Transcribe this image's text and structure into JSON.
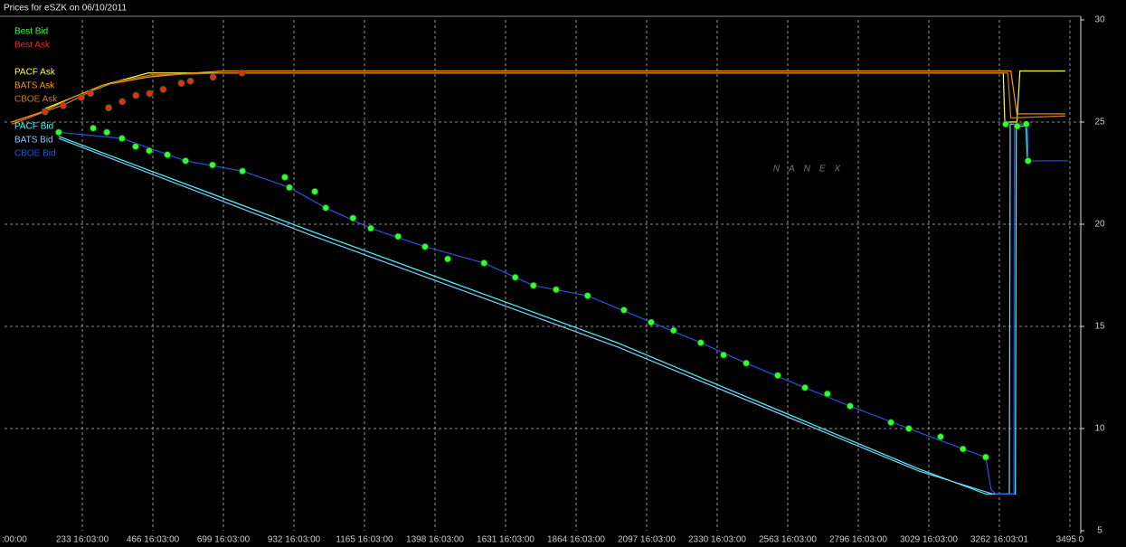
{
  "chart_data": {
    "type": "line",
    "title": "Prices for  eSZK  on  06/10/2011",
    "watermark": "NANEX",
    "xlim": [
      -24,
      3531
    ],
    "ylim": [
      5,
      30
    ],
    "yticks": [
      5,
      10,
      15,
      20,
      25,
      30
    ],
    "xticks": [
      {
        "value": 0,
        "label": ":00:00"
      },
      {
        "value": 233,
        "label": "233 16:03:00"
      },
      {
        "value": 466,
        "label": "466 16:03:00"
      },
      {
        "value": 699,
        "label": "699 16:03:00"
      },
      {
        "value": 932,
        "label": "932 16:03:00"
      },
      {
        "value": 1165,
        "label": "1165 16:03:00"
      },
      {
        "value": 1398,
        "label": "1398 16:03:00"
      },
      {
        "value": 1631,
        "label": "1631 16:03:00"
      },
      {
        "value": 1864,
        "label": "1864 16:03:00"
      },
      {
        "value": 2097,
        "label": "2097 16:03:00"
      },
      {
        "value": 2330,
        "label": "2330 16:03:00"
      },
      {
        "value": 2563,
        "label": "2563 16:03:00"
      },
      {
        "value": 2796,
        "label": "2796 16:03:00"
      },
      {
        "value": 3029,
        "label": "3029 16:03:00"
      },
      {
        "value": 3262,
        "label": "3262 16:03:01"
      },
      {
        "value": 3495,
        "label": "3495 0"
      }
    ],
    "grid": true,
    "series": [
      {
        "name": "Best Bid",
        "color": "#33ff33",
        "style": "markers",
        "x": [
          155,
          269,
          314,
          364,
          409,
          454,
          514,
          574,
          663,
          762,
          902,
          917,
          1001,
          1037,
          1127,
          1186,
          1276,
          1365,
          1440,
          1560,
          1663,
          1723,
          1798,
          1902,
          2022,
          2112,
          2186,
          2276,
          2351,
          2426,
          2530,
          2620,
          2694,
          2769,
          2904,
          2963,
          3068,
          3142,
          3217,
          3283,
          3321,
          3351,
          3357
        ],
        "values": [
          24.5,
          24.7,
          24.5,
          24.2,
          23.8,
          23.6,
          23.4,
          23.1,
          22.9,
          22.6,
          22.3,
          21.8,
          21.6,
          20.8,
          20.3,
          19.8,
          19.4,
          18.9,
          18.3,
          18.1,
          17.4,
          17.0,
          16.8,
          16.5,
          15.8,
          15.2,
          14.8,
          14.2,
          13.6,
          13.2,
          12.6,
          12.0,
          11.7,
          11.1,
          10.3,
          10.0,
          9.6,
          9.0,
          8.6,
          24.9,
          24.8,
          24.9,
          23.1
        ]
      },
      {
        "name": "Best Ask",
        "color": "#ff2020",
        "style": "markers",
        "x": [
          110,
          170,
          230,
          260,
          320,
          365,
          410,
          455,
          500,
          560,
          590,
          665,
          760
        ],
        "values": [
          25.5,
          25.8,
          26.2,
          26.4,
          25.7,
          26.0,
          26.3,
          26.4,
          26.6,
          26.9,
          27.0,
          27.2,
          27.4
        ]
      },
      {
        "name": "PACF Ask",
        "color": "#ffff40",
        "style": "line",
        "x": [
          100,
          200,
          300,
          400,
          450,
          3275,
          3280,
          3320,
          3330,
          3480
        ],
        "values": [
          25.6,
          26.2,
          26.8,
          27.2,
          27.4,
          27.4,
          25.0,
          25.0,
          27.5,
          27.5
        ]
      },
      {
        "name": "BATS Ask",
        "color": "#ff9900",
        "style": "line",
        "x": [
          0,
          100,
          200,
          300,
          450,
          600,
          700,
          3300,
          3320,
          3480
        ],
        "values": [
          25.0,
          25.5,
          26.2,
          26.8,
          27.2,
          27.4,
          27.5,
          27.5,
          25.4,
          25.4
        ]
      },
      {
        "name": "CBOE Ask",
        "color": "#cc7a29",
        "style": "line",
        "x": [
          0,
          90,
          180,
          260,
          350,
          460,
          700,
          3290,
          3300,
          3480
        ],
        "values": [
          24.9,
          25.4,
          25.9,
          26.5,
          27.0,
          27.3,
          27.4,
          27.4,
          25.2,
          25.3
        ]
      },
      {
        "name": "PACF Bid",
        "color": "#40ffff",
        "style": "line",
        "x": [
          155,
          1000,
          2000,
          3000,
          3217,
          3315,
          3318,
          3350,
          3355
        ],
        "values": [
          24.3,
          19.6,
          14.2,
          8.0,
          6.8,
          6.8,
          24.8,
          24.8,
          23.1
        ]
      },
      {
        "name": "BATS Bid",
        "color": "#88ccff",
        "style": "line",
        "x": [
          155,
          1000,
          2000,
          3000,
          3240,
          3295,
          3298,
          3340
        ],
        "values": [
          24.2,
          19.4,
          14.0,
          7.9,
          6.8,
          6.8,
          24.9,
          24.9
        ]
      },
      {
        "name": "CBOE Bid",
        "color": "#2255dd",
        "style": "line",
        "x": [
          155,
          364,
          574,
          762,
          917,
          1037,
          1186,
          1365,
          1560,
          1723,
          1902,
          2112,
          2276,
          2426,
          2620,
          2769,
          2963,
          3142,
          3217,
          3235,
          3250,
          3310,
          3312,
          3355,
          3357,
          3490
        ],
        "values": [
          24.5,
          24.2,
          23.1,
          22.6,
          21.8,
          20.8,
          19.8,
          18.9,
          18.1,
          17.0,
          16.5,
          15.2,
          14.2,
          13.2,
          12.0,
          11.1,
          10.0,
          9.0,
          8.6,
          7.0,
          6.8,
          6.8,
          24.9,
          24.9,
          23.1,
          23.1
        ]
      }
    ]
  }
}
